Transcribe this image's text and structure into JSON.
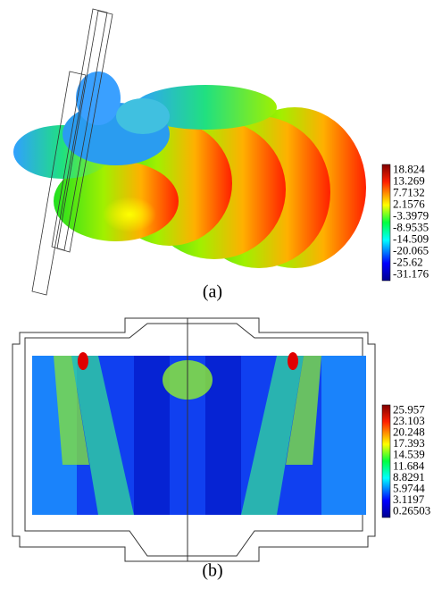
{
  "figures": [
    {
      "caption": "(a)",
      "colorbar_labels": [
        "18.824",
        "13.269",
        "7.7132",
        "2.1576",
        "-3.3979",
        "-8.9535",
        "-14.509",
        "-20.065",
        "-25.62",
        "-31.176"
      ]
    },
    {
      "caption": "(b)",
      "colorbar_labels": [
        "25.957",
        "23.103",
        "20.248",
        "17.393",
        "14.539",
        "11.684",
        "8.8291",
        "5.9744",
        "3.1197",
        "0.26503"
      ]
    }
  ]
}
